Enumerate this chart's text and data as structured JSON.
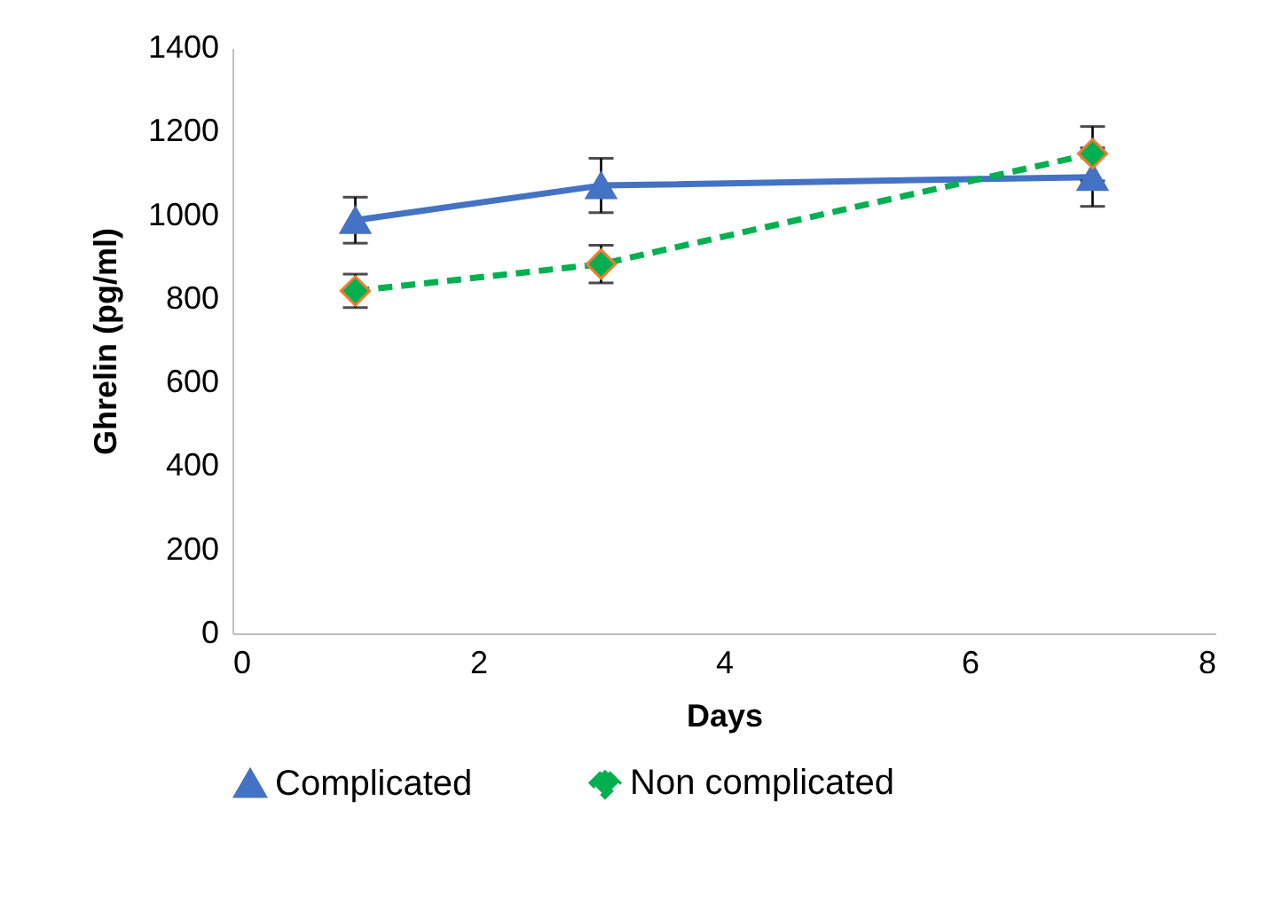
{
  "chart_data": {
    "type": "line",
    "xlabel": "Days",
    "ylabel": "Ghrelin  (pg/ml)",
    "x": [
      1,
      3,
      7
    ],
    "series": [
      {
        "name": "Complicated",
        "color": "#4472c4",
        "marker": "triangle",
        "line_style": "solid",
        "values": [
          988,
          1071,
          1091
        ],
        "errors": [
          55,
          65,
          70
        ]
      },
      {
        "name": "Non complicated",
        "color": "#00b050",
        "marker": "diamond",
        "line_style": "dashed",
        "values": [
          819,
          883,
          1147
        ],
        "errors": [
          40,
          45,
          65
        ]
      }
    ],
    "xlim": [
      0,
      8
    ],
    "xticks": [
      0,
      2,
      4,
      6,
      8
    ],
    "ylim": [
      0,
      1400
    ],
    "yticks": [
      0,
      200,
      400,
      600,
      800,
      1000,
      1200,
      1400
    ],
    "grid": false,
    "legend": "bottom"
  }
}
